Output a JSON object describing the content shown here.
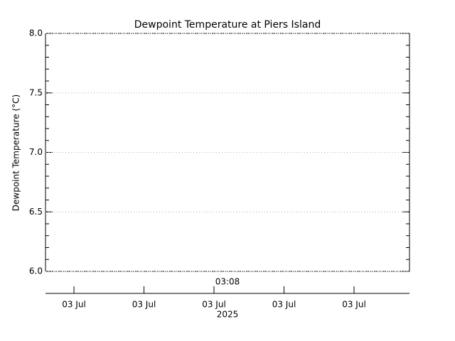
{
  "chart_data": {
    "type": "line",
    "title": "Dewpoint Temperature at Piers Island",
    "y_label": "Dewpoint Temperature (°C)",
    "ylim": [
      6,
      8
    ],
    "yticks": [
      {
        "value": 6,
        "label": "6.0"
      },
      {
        "value": 6.5,
        "label": "6.5"
      },
      {
        "value": 7,
        "label": "7.0"
      },
      {
        "value": 7.5,
        "label": "7.5"
      },
      {
        "value": 8,
        "label": "8.0"
      }
    ],
    "grid": true,
    "time_label": "03:08",
    "categories": [
      "03 Jul",
      "03 Jul",
      "03 Jul",
      "03 Jul",
      "03 Jul"
    ],
    "year_label": "2025",
    "series": []
  }
}
